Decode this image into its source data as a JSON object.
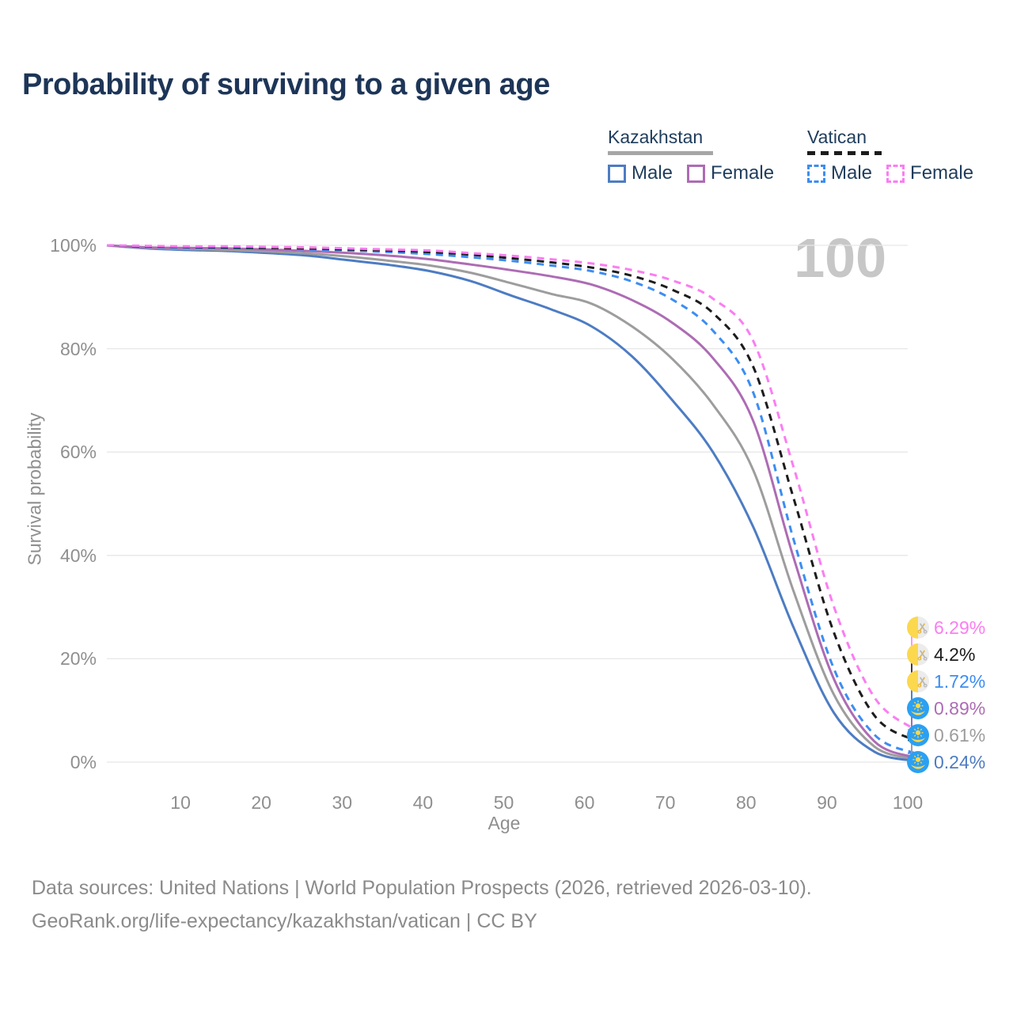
{
  "title": "Probability of surviving to a given age",
  "watermark_age": "100",
  "legend": {
    "groups": [
      {
        "country": "Kazakhstan",
        "line_style": "solid",
        "overall_color": "#a6a6a6",
        "items": [
          {
            "label": "Male",
            "color": "#4d7cc3"
          },
          {
            "label": "Female",
            "color": "#ad6cb4"
          }
        ]
      },
      {
        "country": "Vatican",
        "line_style": "dashed",
        "overall_color": "#1c1c1c",
        "items": [
          {
            "label": "Male",
            "color": "#3c8df2"
          },
          {
            "label": "Female",
            "color": "#fb7df2"
          }
        ]
      }
    ]
  },
  "chart_data": {
    "type": "line",
    "title": "Probability of surviving to a given age",
    "xlabel": "Age",
    "ylabel": "Survival probability",
    "xlim": [
      0,
      100
    ],
    "ylim": [
      0,
      100
    ],
    "x_ticks": [
      10,
      20,
      30,
      40,
      50,
      60,
      70,
      80,
      90,
      100
    ],
    "y_tick_labels": [
      "0%",
      "20%",
      "40%",
      "60%",
      "80%",
      "100%"
    ],
    "grid": "horizontal",
    "legend_position": "top-right",
    "x": [
      0,
      5,
      10,
      15,
      20,
      25,
      30,
      35,
      40,
      45,
      50,
      55,
      60,
      65,
      70,
      75,
      80,
      85,
      90,
      95,
      100
    ],
    "series": [
      {
        "name": "Kazakhstan Male",
        "country": "kazakhstan",
        "sex": "Male",
        "color": "#4d7cc3",
        "dashed": false,
        "end_label": "0.24%",
        "values": [
          100,
          99.4,
          99.1,
          98.9,
          98.5,
          98.0,
          97.1,
          96.2,
          95.0,
          93.1,
          90.3,
          87.6,
          84.3,
          78.5,
          70.0,
          60.0,
          45.5,
          26.0,
          9.5,
          2.0,
          0.24
        ]
      },
      {
        "name": "Kazakhstan Overall",
        "country": "kazakhstan",
        "sex": "Both",
        "color": "#9d9d9d",
        "dashed": false,
        "end_label": "0.61%",
        "values": [
          100,
          99.5,
          99.3,
          99.1,
          98.8,
          98.4,
          97.8,
          97.0,
          96.1,
          94.7,
          92.7,
          90.6,
          88.7,
          84.3,
          78.0,
          69.2,
          56.5,
          33.0,
          13.0,
          3.0,
          0.61
        ]
      },
      {
        "name": "Kazakhstan Female",
        "country": "kazakhstan",
        "sex": "Female",
        "color": "#ad6cb4",
        "dashed": false,
        "end_label": "0.89%",
        "values": [
          100,
          99.6,
          99.5,
          99.4,
          99.2,
          98.9,
          98.5,
          98.0,
          97.3,
          96.3,
          95.2,
          94.0,
          92.4,
          89.4,
          85.0,
          78.2,
          66.0,
          39.5,
          16.0,
          4.0,
          0.89
        ]
      },
      {
        "name": "Vatican Male",
        "country": "vatican",
        "sex": "Male",
        "color": "#3c8df2",
        "dashed": true,
        "end_label": "1.72%",
        "values": [
          100,
          99.7,
          99.6,
          99.5,
          99.4,
          99.2,
          99.0,
          98.7,
          98.3,
          97.7,
          97.0,
          96.1,
          95.0,
          93.0,
          89.5,
          83.5,
          71.5,
          43.0,
          18.0,
          5.3,
          1.72
        ]
      },
      {
        "name": "Vatican Overall",
        "country": "vatican",
        "sex": "Both",
        "color": "#1c1c1c",
        "dashed": true,
        "end_label": "4.2%",
        "values": [
          100,
          99.8,
          99.7,
          99.6,
          99.5,
          99.4,
          99.2,
          99.0,
          98.7,
          98.2,
          97.5,
          96.7,
          95.7,
          94.1,
          91.4,
          86.9,
          76.5,
          51.0,
          25.0,
          9.0,
          4.2
        ]
      },
      {
        "name": "Vatican Female",
        "country": "vatican",
        "sex": "Female",
        "color": "#fb7df2",
        "dashed": true,
        "end_label": "6.29%",
        "values": [
          100,
          99.9,
          99.8,
          99.8,
          99.7,
          99.6,
          99.4,
          99.2,
          99.0,
          98.5,
          98.0,
          97.3,
          96.5,
          95.2,
          93.2,
          89.7,
          81.5,
          57.0,
          30.0,
          12.5,
          6.29
        ]
      }
    ]
  },
  "footer": {
    "line1": "Data sources: United Nations | World Population Prospects (2026, retrieved 2026-03-10).",
    "line2": "GeoRank.org/life-expectancy/kazakhstan/vatican | CC BY"
  }
}
